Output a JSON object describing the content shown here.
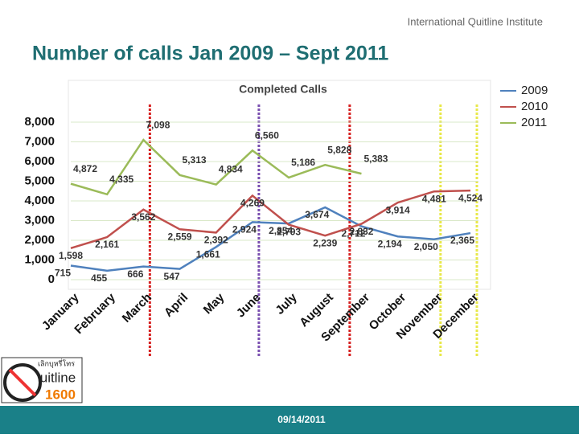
{
  "header": {
    "logo": "International Quitline Institute"
  },
  "title": "Number of calls Jan 2009 – Sept 2011",
  "footer": {
    "date": "09/14/2011"
  },
  "badge": {
    "thai": "เลิกบุหรี่โทร",
    "word": "uitline",
    "number": "1600"
  },
  "chart_data": {
    "type": "line",
    "title": "Completed Calls",
    "categories": [
      "January",
      "February",
      "March",
      "April",
      "May",
      "June",
      "July",
      "August",
      "September",
      "October",
      "November",
      "December"
    ],
    "series": [
      {
        "name": "2009",
        "color": "#4f81bd",
        "values": [
          715,
          455,
          666,
          547,
          1661,
          2924,
          2854,
          3674,
          2712,
          2194,
          2050,
          2365
        ],
        "value_labels": [
          "715",
          "455",
          "666",
          "547",
          "1,661",
          "2,924",
          "2,854",
          "3,674",
          "2,712",
          "2,194",
          "2,050",
          "2,365"
        ]
      },
      {
        "name": "2010",
        "color": "#c0504d",
        "values": [
          1598,
          2161,
          3562,
          2559,
          2392,
          4269,
          2793,
          2239,
          2832,
          3914,
          4481,
          4524
        ],
        "value_labels": [
          "1,598",
          "2,161",
          "3,562",
          "2,559",
          "2,392",
          "4,269",
          "2,793",
          "2,239",
          "2,832",
          "3,914",
          "4,481",
          "4,524"
        ]
      },
      {
        "name": "2011",
        "color": "#9bbb59",
        "values": [
          4872,
          4335,
          7098,
          5313,
          4834,
          6560,
          5186,
          5828,
          5383,
          null,
          null,
          null
        ],
        "value_labels": [
          "4,872",
          "4,335",
          "7,098",
          "5,313",
          "4,834",
          "6,560",
          "5,186",
          "5,828",
          "5,383",
          null,
          null,
          null
        ]
      }
    ],
    "ylim": [
      0,
      8000
    ],
    "yticks": [
      0,
      {
        "value": 1000,
        "label": "1,000"
      },
      {
        "value": 2000,
        "label": "2,000"
      },
      {
        "value": 3000,
        "label": "3,000"
      },
      {
        "value": 4000,
        "label": "4,000"
      },
      {
        "value": 5000,
        "label": "5,000"
      },
      {
        "value": 6000,
        "label": "6,000"
      },
      {
        "value": 7000,
        "label": "7,000"
      },
      {
        "value": 8000,
        "label": "8,000"
      }
    ],
    "grid": true,
    "legend": "top-right"
  }
}
